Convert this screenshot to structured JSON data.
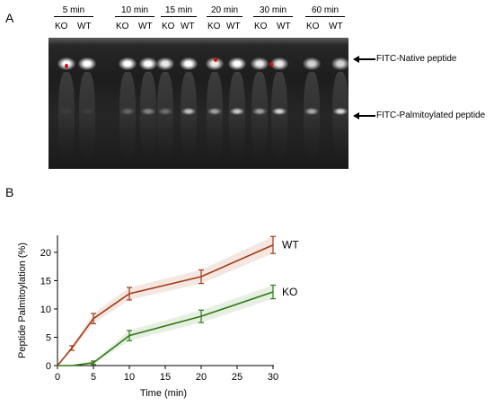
{
  "panel_a": {
    "letter": "A",
    "time_points": [
      "5 min",
      "10 min",
      "15 min",
      "20 min",
      "30 min",
      "60 min"
    ],
    "lane_ko": "KO",
    "lane_wt": "WT",
    "native_label": "FITC-Native peptide",
    "palmitoylated_label": "FITC-Palmitoylated peptide"
  },
  "panel_b": {
    "letter": "B"
  },
  "chart_data": {
    "type": "line",
    "xlabel": "Time (min)",
    "ylabel": "Peptide Palmitoylation (%)",
    "xlim": [
      0,
      32
    ],
    "ylim": [
      0,
      23
    ],
    "xticks": [
      0,
      5,
      10,
      15,
      20,
      25,
      30
    ],
    "yticks": [
      0,
      5,
      10,
      15,
      20
    ],
    "series": [
      {
        "name": "WT",
        "color": "#a33b14",
        "x": [
          0,
          2,
          5,
          10,
          20,
          30
        ],
        "y": [
          0,
          3.1,
          8.3,
          12.7,
          15.7,
          21.3
        ],
        "err": [
          0,
          0.4,
          0.9,
          1.1,
          1.2,
          1.5
        ]
      },
      {
        "name": "KO",
        "color": "#2e7a12",
        "x": [
          0,
          2,
          5,
          10,
          20,
          30
        ],
        "y": [
          0,
          0,
          0.5,
          5.3,
          8.7,
          13.0
        ],
        "err": [
          0,
          0,
          0.3,
          0.9,
          1.1,
          1.2
        ]
      }
    ]
  }
}
